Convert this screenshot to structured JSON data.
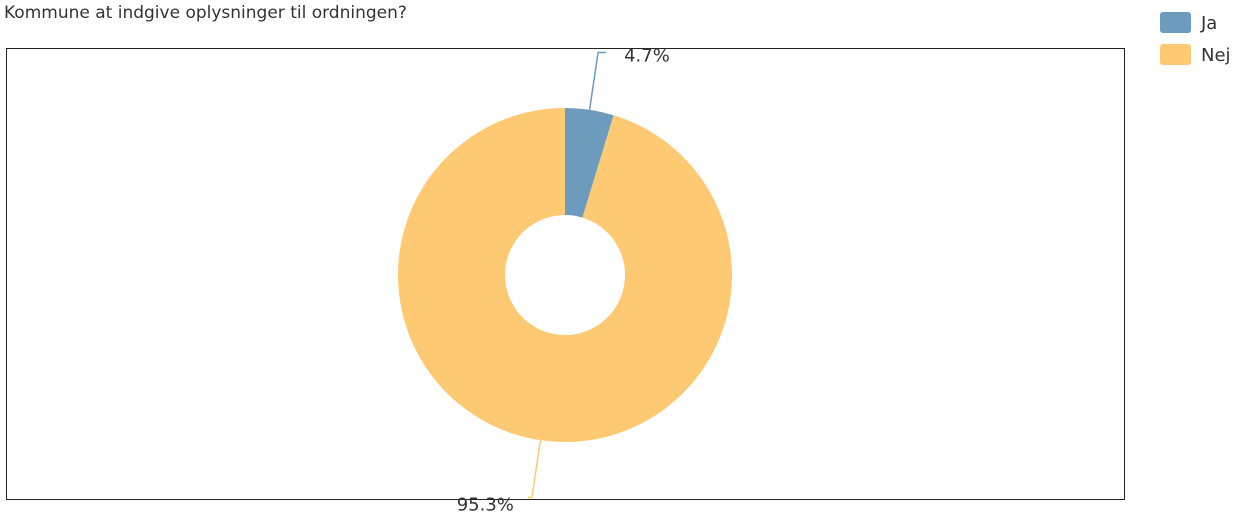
{
  "chart_data": {
    "type": "donut",
    "title": "Kommune at indgive oplysninger til ordningen?",
    "categories": [
      "Ja",
      "Nej"
    ],
    "values": [
      4.7,
      95.3
    ],
    "value_labels": [
      "4.7%",
      "95.3%"
    ],
    "colors": [
      "#6d9bbd",
      "#fdc973"
    ],
    "legend": "top-right"
  }
}
